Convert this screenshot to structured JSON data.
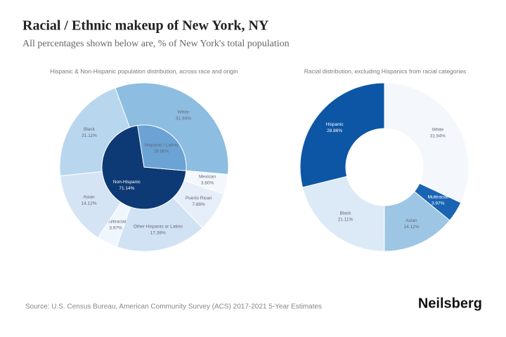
{
  "title": "Racial / Ethnic makeup of New York, NY",
  "subtitle": "All percentages shown below are, % of New York's total population",
  "source": "Source: U.S. Census Bureau, American Community Survey (ACS) 2017-2021 5-Year Estimates",
  "brand": "Neilsberg",
  "chart_data": [
    {
      "type": "sunburst",
      "title": "Hispanic & Non-Hispanic population distribution, across race and origin",
      "start_angle": -20,
      "inner": {
        "categories": [
          "Non-Hispanic",
          "Hispanic / Latino"
        ],
        "values": [
          71.14,
          28.86
        ],
        "value_labels": [
          "71.14%",
          "28.86%"
        ],
        "colors": [
          "#0d3a75",
          "#6aa3d4"
        ]
      },
      "outer": {
        "categories": [
          "White",
          "Mexican",
          "Puerto Rican",
          "Other Hispanic or Latino",
          "Multiracial",
          "Asian",
          "Black"
        ],
        "values": [
          31.94,
          3.8,
          7.68,
          17.38,
          3.97,
          14.12,
          21.11
        ],
        "value_labels": [
          "31.94%",
          "3.80%",
          "7.68%",
          "17.38%",
          "3.97%",
          "14.12%",
          "21.11%"
        ],
        "colors": [
          "#8dbde0",
          "#f4f8fd",
          "#e6eff9",
          "#d0e2f4",
          "#f0f6fd",
          "#d4e4f5",
          "#b8d6ee"
        ]
      }
    },
    {
      "type": "donut",
      "title": "Racial distribution, excluding Hispanics from racial categories",
      "start_angle": 0,
      "categories": [
        "White",
        "Multiracial",
        "Asian",
        "Black",
        "Hispanic"
      ],
      "values": [
        31.94,
        3.97,
        14.12,
        21.11,
        28.86
      ],
      "value_labels": [
        "31.94%",
        "3.97%",
        "14.12%",
        "21.11%",
        "28.86%"
      ],
      "colors": [
        "#f4f8fd",
        "#1a64b4",
        "#9cc6e4",
        "#dce9f6",
        "#0d56a6"
      ]
    }
  ]
}
